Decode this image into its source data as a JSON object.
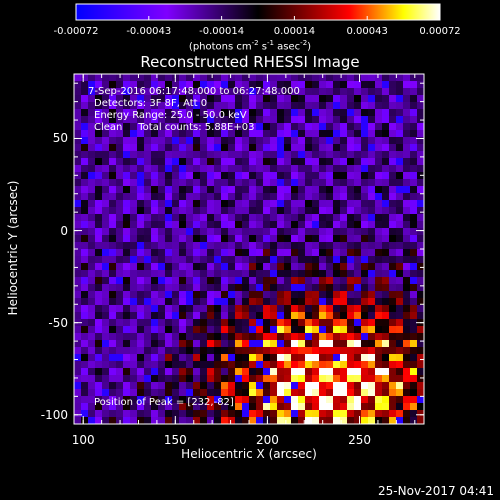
{
  "colorbar": {
    "ticks": [
      "-0.00072",
      "-0.00043",
      "-0.00014",
      "0.00014",
      "0.00043",
      "0.00072"
    ],
    "unit_parts": [
      "(photons cm",
      "-2",
      " s",
      "-1",
      " asec",
      "-2",
      ")"
    ]
  },
  "info": {
    "time_range": "7-Sep-2016 06:17:48.000 to 06:27:48.000",
    "detectors": "Detectors: 3F 8F, Att 0",
    "energy": "Energy Range: 25.0 - 50.0 keV",
    "clean": "Clean     Total counts: 5.88E+03",
    "peak": "Position of Peak = [232,-82]"
  },
  "footer": {
    "timestamp": "25-Nov-2017 04:41"
  },
  "chart_data": {
    "type": "heatmap",
    "title": "Reconstructed RHESSI Image",
    "xlabel": "Heliocentric X (arcsec)",
    "ylabel": "Heliocentric Y (arcsec)",
    "xlim": [
      95,
      285
    ],
    "ylim": [
      -105,
      85
    ],
    "x_ticks": [
      100,
      150,
      200,
      250
    ],
    "y_ticks": [
      50,
      0,
      -50,
      -100
    ],
    "color_range": [
      -0.00072,
      0.00072
    ],
    "colormap": [
      "#0000ff",
      "#7f00ff",
      "#000000",
      "#ff0000",
      "#ffff00",
      "#ffffff"
    ],
    "peak": [
      232,
      -82
    ]
  }
}
